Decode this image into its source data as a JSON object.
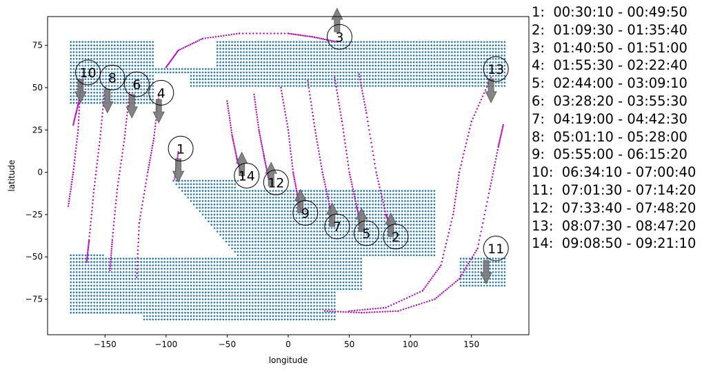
{
  "chart_data": {
    "type": "scatter",
    "xlabel": "longitude",
    "ylabel": "latitude",
    "xlim": [
      -197,
      197
    ],
    "ylim": [
      -96,
      92
    ],
    "xticks": [
      -150,
      -100,
      -50,
      0,
      50,
      100,
      150
    ],
    "yticks": [
      -75,
      -50,
      -25,
      0,
      25,
      50,
      75
    ],
    "xtick_labels": [
      "−150",
      "−100",
      "−50",
      "0",
      "50",
      "100",
      "150"
    ],
    "ytick_labels": [
      "−75",
      "−50",
      "−25",
      "0",
      "25",
      "50",
      "75"
    ],
    "grid": false,
    "colors": {
      "coverage": "#1f77b4",
      "track": "#bf00bf",
      "arrow": "#777777"
    },
    "passes": [
      {
        "id": "1",
        "label_pos": [
          -88,
          14
        ],
        "arrow": "down",
        "arrow_tail": [
          -90,
          8
        ],
        "track": [
          [
            -90,
            12
          ],
          [
            -93,
            -4
          ]
        ]
      },
      {
        "id": "2",
        "label_pos": [
          88,
          -38
        ],
        "arrow": "up",
        "arrow_tail": [
          84,
          -38
        ],
        "track": [
          [
            58,
            58
          ],
          [
            64,
            35
          ],
          [
            72,
            0
          ],
          [
            80,
            -25
          ],
          [
            84,
            -33
          ]
        ]
      },
      {
        "id": "3",
        "label_pos": [
          42,
          80
        ],
        "arrow": "up",
        "arrow_tail": [
          40,
          83
        ],
        "track": [
          [
            -100,
            62
          ],
          [
            -90,
            72
          ],
          [
            -70,
            79
          ],
          [
            -40,
            82
          ],
          [
            0,
            82
          ],
          [
            20,
            80
          ],
          [
            40,
            77
          ]
        ]
      },
      {
        "id": "4",
        "label_pos": [
          -104,
          47
        ],
        "arrow": "down",
        "arrow_tail": [
          -106,
          43
        ],
        "track": [
          [
            -106,
            45
          ],
          [
            -110,
            20
          ],
          [
            -115,
            0
          ],
          [
            -122,
            -30
          ],
          [
            -124,
            -62
          ]
        ]
      },
      {
        "id": "5",
        "label_pos": [
          64,
          -36
        ],
        "arrow": "up",
        "arrow_tail": [
          60,
          -35
        ],
        "track": [
          [
            38,
            56
          ],
          [
            44,
            30
          ],
          [
            50,
            0
          ],
          [
            56,
            -20
          ],
          [
            60,
            -34
          ]
        ]
      },
      {
        "id": "6",
        "label_pos": [
          -124,
          52
        ],
        "arrow": "down",
        "arrow_tail": [
          -128,
          46
        ],
        "track": [
          [
            -130,
            47
          ],
          [
            -134,
            20
          ],
          [
            -140,
            -10
          ],
          [
            -144,
            -40
          ],
          [
            -146,
            -58
          ]
        ]
      },
      {
        "id": "7",
        "label_pos": [
          40,
          -32
        ],
        "arrow": "up",
        "arrow_tail": [
          36,
          -32
        ],
        "track": [
          [
            16,
            54
          ],
          [
            22,
            25
          ],
          [
            28,
            0
          ],
          [
            34,
            -20
          ],
          [
            36,
            -31
          ]
        ]
      },
      {
        "id": "8",
        "label_pos": [
          -144,
          56
        ],
        "arrow": "down",
        "arrow_tail": [
          -148,
          49
        ],
        "track": [
          [
            -150,
            50
          ],
          [
            -154,
            20
          ],
          [
            -159,
            -10
          ],
          [
            -163,
            -40
          ],
          [
            -165,
            -53
          ]
        ]
      },
      {
        "id": "9",
        "label_pos": [
          14,
          -24
        ],
        "arrow": "up",
        "arrow_tail": [
          10,
          -24
        ],
        "track": [
          [
            -6,
            50
          ],
          [
            0,
            25
          ],
          [
            4,
            0
          ],
          [
            8,
            -15
          ],
          [
            10,
            -22
          ]
        ]
      },
      {
        "id": "10",
        "label_pos": [
          -164,
          59
        ],
        "arrow": "down",
        "arrow_tail": [
          -170,
          55
        ],
        "track": [
          [
            -168,
            55
          ],
          [
            -172,
            40
          ],
          [
            -176,
            28
          ]
        ]
      },
      {
        "id": "10b",
        "label_pos": null,
        "arrow": null,
        "arrow_tail": null,
        "track": [
          [
            -170,
            52
          ],
          [
            -172,
            25
          ],
          [
            -176,
            0
          ],
          [
            -180,
            -20
          ]
        ]
      },
      {
        "id": "11",
        "label_pos": [
          170,
          -45
        ],
        "arrow": "down",
        "arrow_tail": [
          162,
          -52
        ],
        "track": [
          [
            30,
            -82
          ],
          [
            60,
            -83
          ],
          [
            90,
            -82
          ],
          [
            120,
            -75
          ],
          [
            140,
            -63
          ],
          [
            155,
            -45
          ],
          [
            165,
            -10
          ],
          [
            172,
            15
          ],
          [
            176,
            28
          ]
        ]
      },
      {
        "id": "12",
        "label_pos": [
          -10,
          -6
        ],
        "arrow": "up",
        "arrow_tail": [
          -14,
          -8
        ],
        "track": [
          [
            -28,
            46
          ],
          [
            -24,
            25
          ],
          [
            -20,
            10
          ],
          [
            -16,
            -4
          ]
        ]
      },
      {
        "id": "13",
        "label_pos": [
          170,
          61
        ],
        "arrow": "down",
        "arrow_tail": [
          166,
          55
        ],
        "track": [
          [
            166,
            56
          ],
          [
            150,
            30
          ],
          [
            140,
            0
          ],
          [
            135,
            -25
          ],
          [
            125,
            -55
          ],
          [
            110,
            -70
          ],
          [
            80,
            -80
          ],
          [
            50,
            -82
          ]
        ]
      },
      {
        "id": "14",
        "label_pos": [
          -34,
          -2
        ],
        "arrow": "up",
        "arrow_tail": [
          -38,
          -2
        ],
        "track": [
          [
            -50,
            42
          ],
          [
            -46,
            22
          ],
          [
            -42,
            8
          ],
          [
            -38,
            -2
          ]
        ]
      }
    ],
    "legend": [
      "1:  00:30:10 - 00:49:50",
      "2:  01:09:30 - 01:35:40",
      "3:  01:40:50 - 01:51:00",
      "4:  01:55:30 - 02:22:40",
      "5:  02:44:00 - 03:09:10",
      "6:  03:28:20 - 03:55:30",
      "7:  04:19:00 - 04:42:30",
      "8:  05:01:10 - 05:28:00",
      "9:  05:55:00 - 06:15:20",
      "10:  06:34:10 - 07:00:40",
      "11:  07:01:30 - 07:14:20",
      "12:  07:33:40 - 07:48:20",
      "13:  08:07:30 - 08:47:20",
      "14:  09:08:50 - 09:21:10"
    ]
  }
}
